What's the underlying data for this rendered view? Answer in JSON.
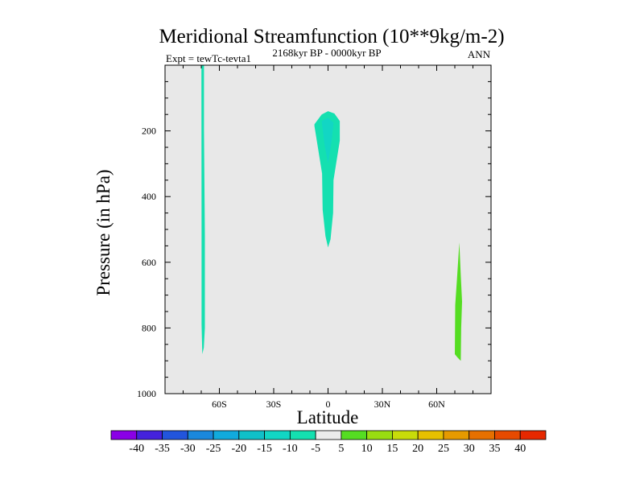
{
  "chart_data": {
    "type": "heatmap",
    "title": "Meridional Streamfunction (10**9kg/m-2)",
    "subtitle_left": "Expt = tewTc-tevta1",
    "subtitle_center": "2168kyr BP - 0000kyr BP",
    "subtitle_right": "ANN",
    "xlabel": "Latitude",
    "ylabel": "Pressure (in hPa)",
    "xlim": [
      -90,
      90
    ],
    "ylim": [
      1000,
      0
    ],
    "background_color": "#e8e8e8",
    "x_ticks": [
      {
        "value": -60,
        "label": "60S"
      },
      {
        "value": -30,
        "label": "30S"
      },
      {
        "value": 0,
        "label": "0"
      },
      {
        "value": 30,
        "label": "30N"
      },
      {
        "value": 60,
        "label": "60N"
      }
    ],
    "y_ticks": [
      {
        "value": 200,
        "label": "200"
      },
      {
        "value": 400,
        "label": "400"
      },
      {
        "value": 600,
        "label": "600"
      },
      {
        "value": 800,
        "label": "800"
      },
      {
        "value": 1000,
        "label": "1000"
      }
    ],
    "colorbar": {
      "labels": [
        "-40",
        "-35",
        "-30",
        "-25",
        "-20",
        "-15",
        "-10",
        "-5",
        "5",
        "10",
        "15",
        "20",
        "25",
        "30",
        "35",
        "40"
      ],
      "colors": [
        "#8a00e6",
        "#4422dd",
        "#2255dd",
        "#1a88dd",
        "#11aadd",
        "#10c0c8",
        "#12d6c4",
        "#14e0b0",
        "#ececec",
        "#55dd22",
        "#99dd11",
        "#c8dc0a",
        "#e6c000",
        "#e69a00",
        "#e67000",
        "#e64a00",
        "#e62800"
      ]
    },
    "regions": [
      {
        "name": "contour-region-south-polar",
        "color": "#14e0b0",
        "points": [
          [
            -69.9,
            0
          ],
          [
            -68.5,
            0
          ],
          [
            -68.5,
            200
          ],
          [
            -68.0,
            520
          ],
          [
            -68.0,
            800
          ],
          [
            -68.6,
            860
          ],
          [
            -69.4,
            880
          ],
          [
            -69.8,
            790
          ],
          [
            -69.8,
            500
          ]
        ]
      },
      {
        "name": "contour-region-equatorial",
        "color": "#14e0b0",
        "points": [
          [
            -7.5,
            180
          ],
          [
            -3.5,
            150
          ],
          [
            0,
            140
          ],
          [
            3.5,
            147
          ],
          [
            6.5,
            170
          ],
          [
            6.5,
            230
          ],
          [
            3.0,
            350
          ],
          [
            2.8,
            450
          ],
          [
            1.4,
            530
          ],
          [
            0,
            555
          ],
          [
            -1.4,
            520
          ],
          [
            -3.0,
            440
          ],
          [
            -3.3,
            330
          ],
          [
            -7.5,
            185
          ]
        ]
      },
      {
        "name": "contour-region-equatorial-core",
        "color": "#12d6c4",
        "points": [
          [
            -3.5,
            170
          ],
          [
            0,
            160
          ],
          [
            3.0,
            175
          ],
          [
            2.0,
            230
          ],
          [
            0,
            300
          ],
          [
            -2.0,
            240
          ]
        ]
      },
      {
        "name": "contour-region-north-polar",
        "color": "#55dd22",
        "points": [
          [
            72.5,
            540
          ],
          [
            73.3,
            640
          ],
          [
            74.0,
            720
          ],
          [
            73.5,
            800
          ],
          [
            73.3,
            900
          ],
          [
            71.5,
            890
          ],
          [
            70.0,
            880
          ],
          [
            70.2,
            730
          ],
          [
            71.2,
            650
          ]
        ]
      }
    ]
  }
}
